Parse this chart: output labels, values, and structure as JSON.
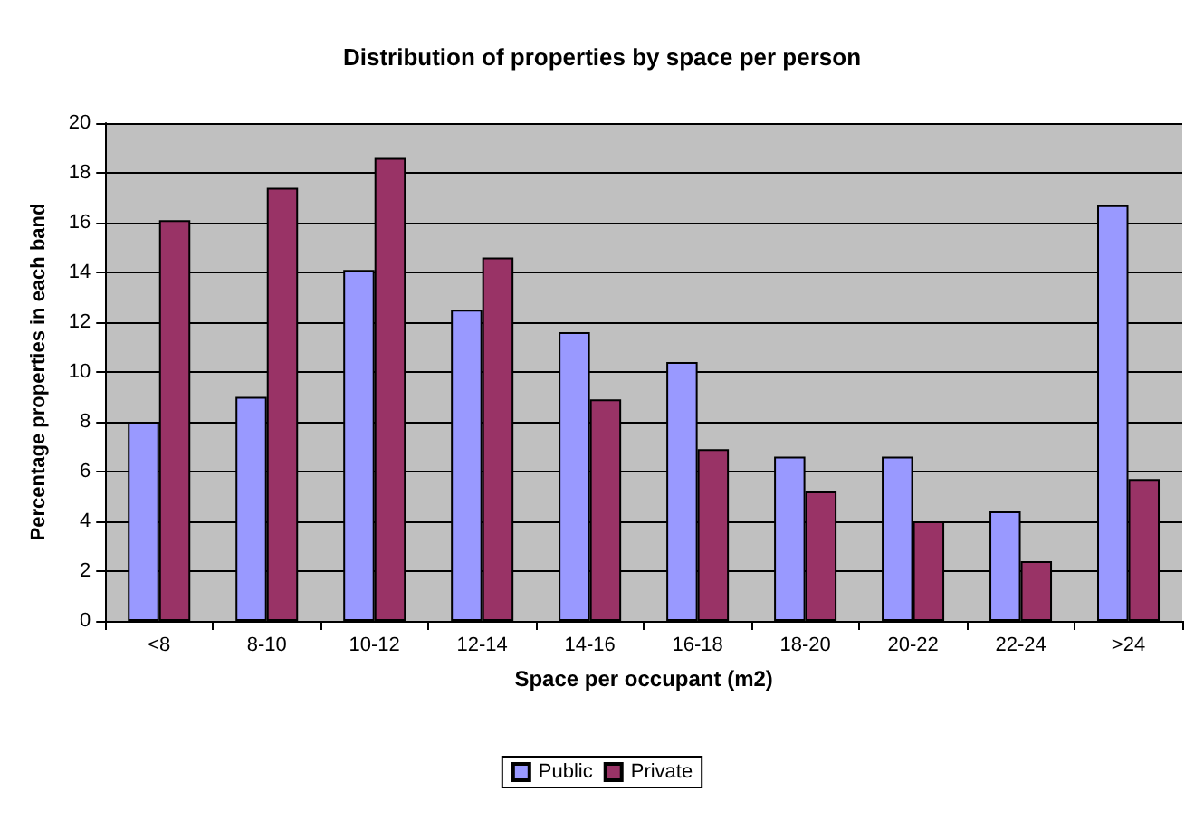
{
  "chart_data": {
    "type": "bar",
    "title": "Distribution of properties by space per person",
    "xlabel": "Space per occupant (m2)",
    "ylabel": "Percentage properties in each band",
    "categories": [
      "<8",
      "8-10",
      "10-12",
      "12-14",
      "14-16",
      "16-18",
      "18-20",
      "20-22",
      "22-24",
      ">24"
    ],
    "series": [
      {
        "name": "Public",
        "color": "#9999ff",
        "values": [
          8.0,
          9.0,
          14.1,
          12.5,
          11.6,
          10.4,
          6.6,
          6.6,
          4.4,
          16.7
        ]
      },
      {
        "name": "Private",
        "color": "#993366",
        "values": [
          16.1,
          17.4,
          18.6,
          14.6,
          8.9,
          6.9,
          5.2,
          4.0,
          2.4,
          5.7
        ]
      }
    ],
    "ylim": [
      0,
      20
    ],
    "yticks": [
      0,
      2,
      4,
      6,
      8,
      10,
      12,
      14,
      16,
      18,
      20
    ],
    "grid": "y",
    "legend": "bottom"
  }
}
